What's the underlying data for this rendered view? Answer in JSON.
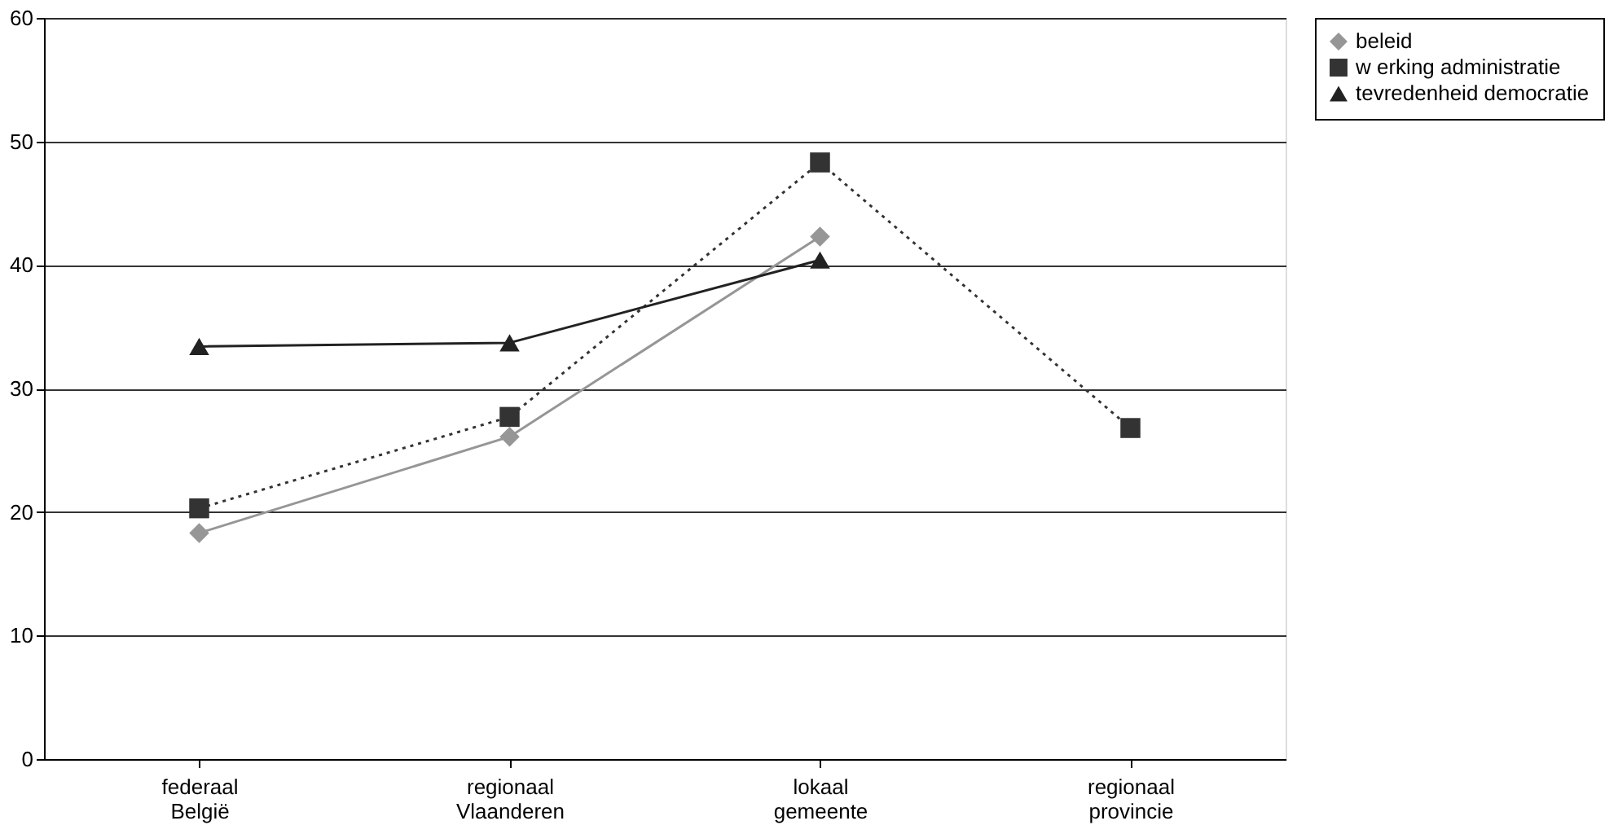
{
  "chart_data": {
    "type": "line",
    "categories": [
      "federaal België",
      "regionaal Vlaanderen",
      "lokaal gemeente",
      "regionaal provincie"
    ],
    "series": [
      {
        "name": "beleid",
        "color": "#969696",
        "marker": "diamond",
        "line_style": "solid",
        "values": [
          18.3,
          26.1,
          42.3,
          null
        ]
      },
      {
        "name": "w erking administratie",
        "color": "#333333",
        "marker": "square",
        "line_style": "dotted",
        "values": [
          20.3,
          27.7,
          48.3,
          26.8
        ]
      },
      {
        "name": "tevredenheid democratie",
        "color": "#222222",
        "marker": "triangle",
        "line_style": "solid",
        "values": [
          33.4,
          33.7,
          40.4,
          null
        ]
      }
    ],
    "ylim": [
      0,
      60
    ],
    "yticks": [
      0,
      10,
      20,
      30,
      40,
      50,
      60
    ],
    "grid": "y",
    "legend": "right"
  }
}
